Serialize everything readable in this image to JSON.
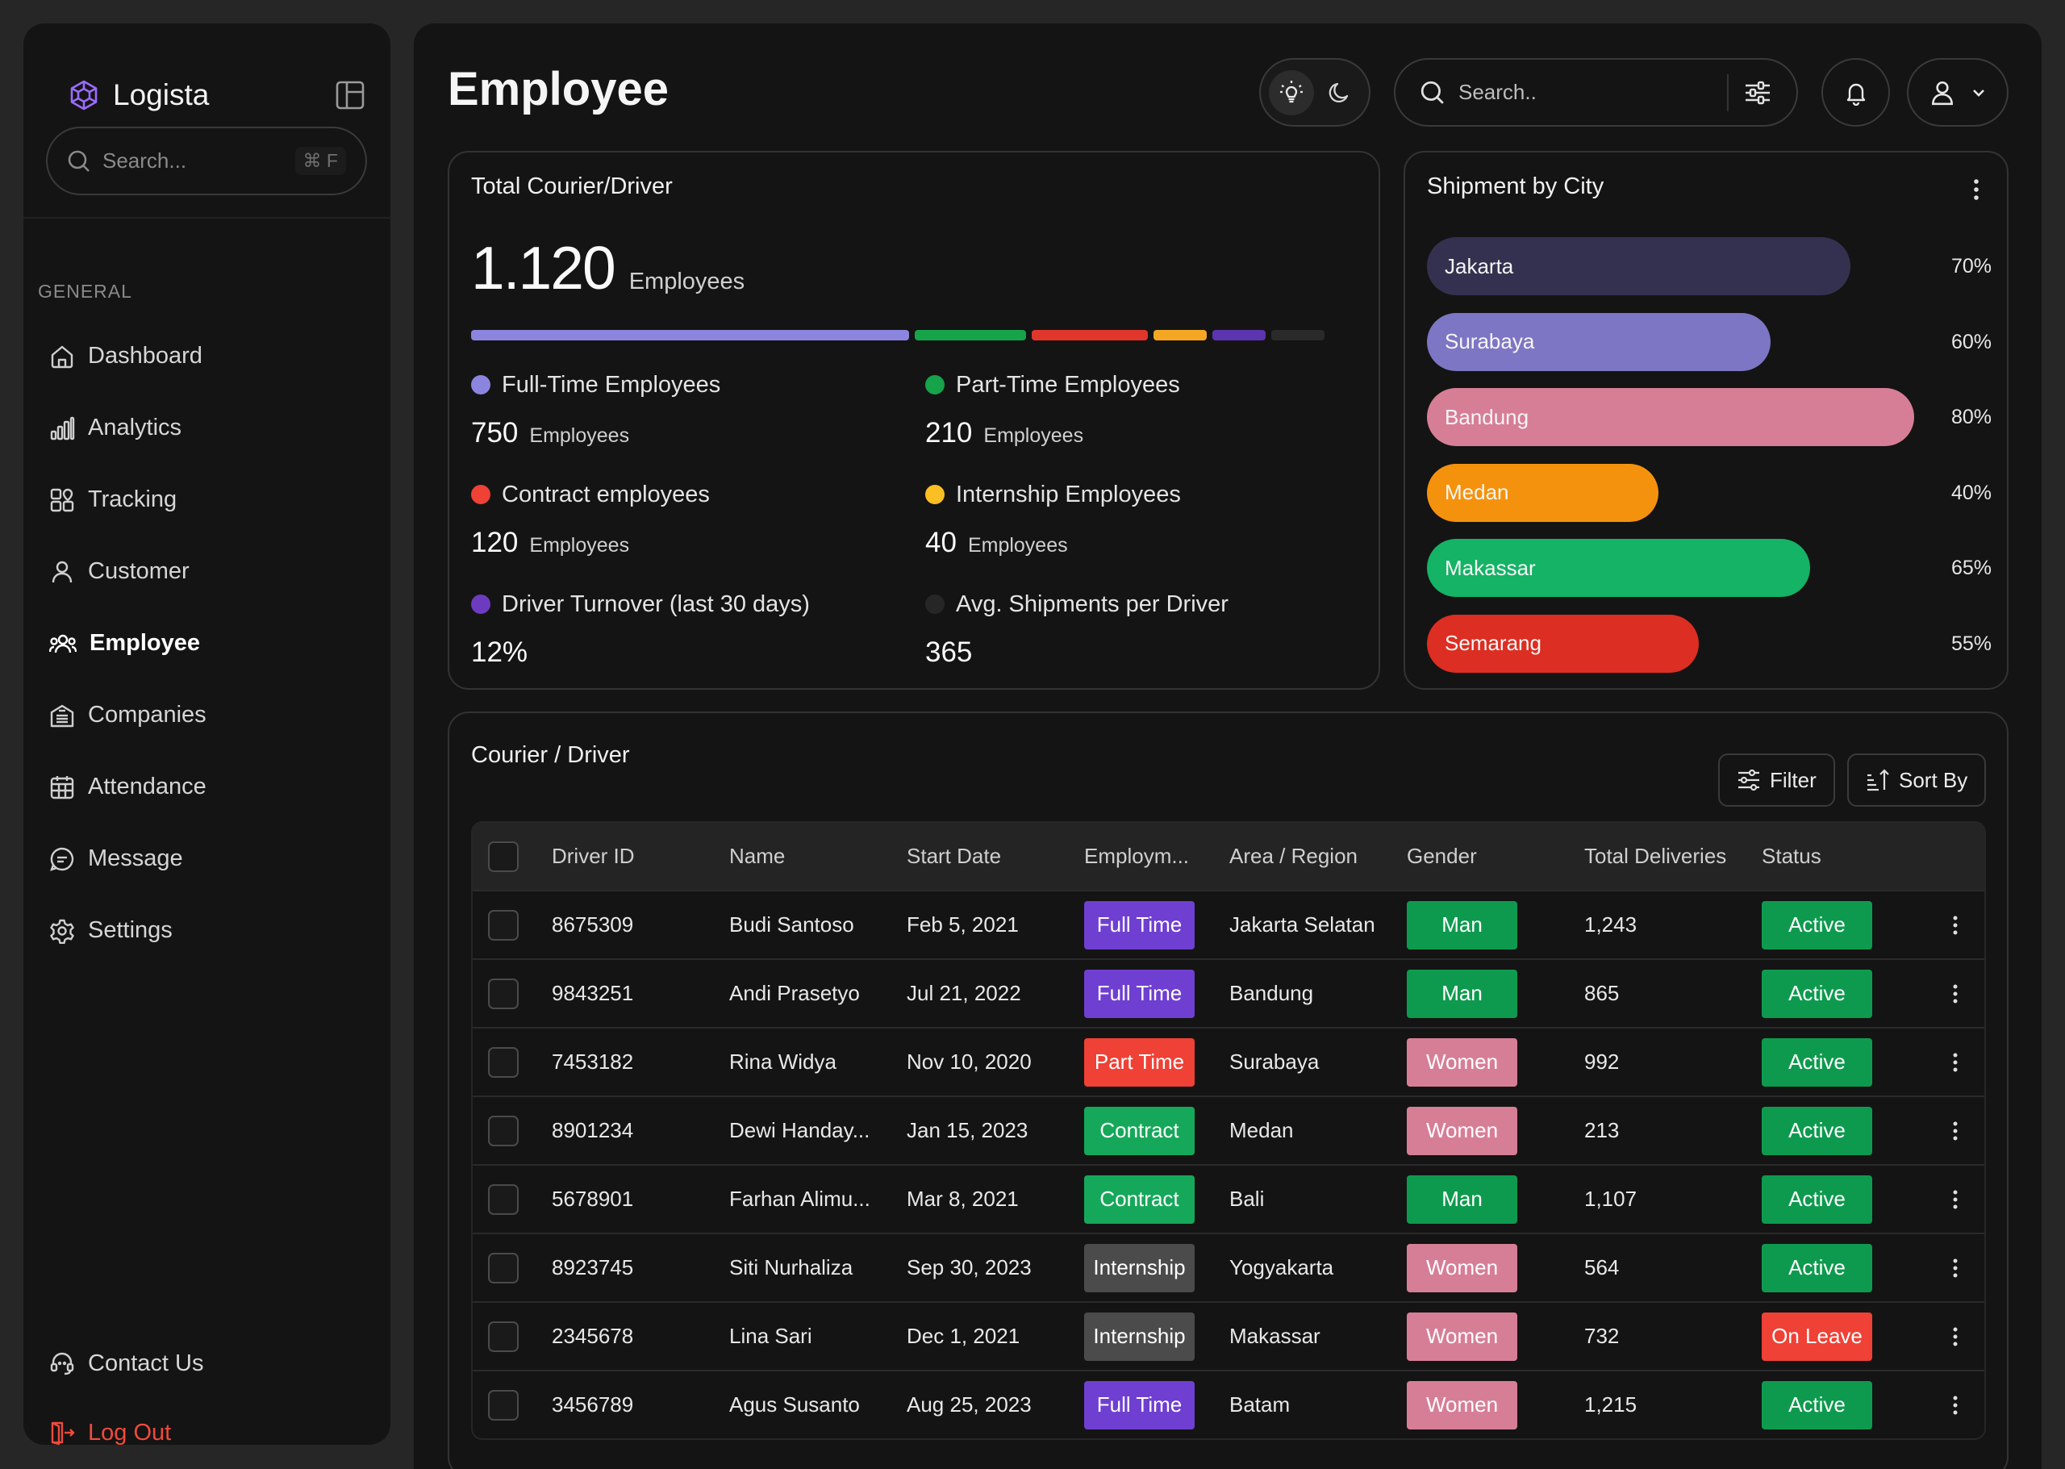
{
  "sidebar": {
    "brand": "Logista",
    "search_placeholder": "Search...",
    "search_shortcut": "⌘ F",
    "section": "GENERAL",
    "items": [
      {
        "label": "Dashboard",
        "icon": "home-icon"
      },
      {
        "label": "Analytics",
        "icon": "bar-chart-icon"
      },
      {
        "label": "Tracking",
        "icon": "tracking-icon"
      },
      {
        "label": "Customer",
        "icon": "user-icon"
      },
      {
        "label": "Employee",
        "icon": "users-icon",
        "active": true
      },
      {
        "label": "Companies",
        "icon": "building-icon"
      },
      {
        "label": "Attendance",
        "icon": "calendar-icon"
      },
      {
        "label": "Message",
        "icon": "message-icon"
      },
      {
        "label": "Settings",
        "icon": "gear-icon"
      }
    ],
    "bottom": {
      "contact": "Contact Us",
      "logout": "Log Out"
    }
  },
  "header": {
    "title": "Employee",
    "search_placeholder": "Search.."
  },
  "total_card": {
    "title": "Total Courier/Driver",
    "total": "1.120",
    "total_unit": "Employees",
    "segments": [
      {
        "color": "#8b85e0",
        "share": 0.51
      },
      {
        "color": "#16a34a",
        "share": 0.13
      },
      {
        "color": "#e0362c",
        "share": 0.135
      },
      {
        "color": "#f5a623",
        "share": 0.062
      },
      {
        "color": "#5b35b0",
        "share": 0.062
      },
      {
        "color": "#2a2a2a",
        "share": 0.062
      }
    ],
    "stats": [
      {
        "label": "Full-Time Employees",
        "value": "750",
        "unit": "Employees",
        "color": "#8b85e0"
      },
      {
        "label": "Part-Time Employees",
        "value": "210",
        "unit": "Employees",
        "color": "#16a34a"
      },
      {
        "label": "Contract employees",
        "value": "120",
        "unit": "Employees",
        "color": "#ef4136"
      },
      {
        "label": "Internship Employees",
        "value": "40",
        "unit": "Employees",
        "color": "#fbbf24"
      },
      {
        "label": "Driver Turnover (last 30 days)",
        "value": "12%",
        "unit": "",
        "color": "#6d3bbf"
      },
      {
        "label": "Avg. Shipments per Driver",
        "value": "365",
        "unit": "",
        "color": "#262626"
      }
    ]
  },
  "city_card": {
    "title": "Shipment by City",
    "cities": [
      {
        "name": "Jakarta",
        "pct_label": "70%",
        "fill": 0.53,
        "color": "#343150"
      },
      {
        "name": "Surabaya",
        "pct_label": "60%",
        "fill": 0.43,
        "color": "#7d76c4"
      },
      {
        "name": "Bandung",
        "pct_label": "80%",
        "fill": 0.61,
        "color": "#d77e97"
      },
      {
        "name": "Medan",
        "pct_label": "40%",
        "fill": 0.29,
        "color": "#f5920d"
      },
      {
        "name": "Makassar",
        "pct_label": "65%",
        "fill": 0.48,
        "color": "#14b365"
      },
      {
        "name": "Semarang",
        "pct_label": "55%",
        "fill": 0.34,
        "color": "#dc2e22"
      }
    ]
  },
  "table_card": {
    "title": "Courier / Driver",
    "filter": "Filter",
    "sort": "Sort By",
    "columns": [
      "Driver ID",
      "Name",
      "Start Date",
      "Employm...",
      "Area / Region",
      "Gender",
      "Total Deliveries",
      "Status"
    ],
    "rows": [
      {
        "id": "8675309",
        "name": "Budi Santoso",
        "date": "Feb 5, 2021",
        "type": "Full Time",
        "area": "Jakarta Selatan",
        "gender": "Man",
        "total": "1,243",
        "status": "Active"
      },
      {
        "id": "9843251",
        "name": "Andi Prasetyo",
        "date": "Jul 21, 2022",
        "type": "Full Time",
        "area": "Bandung",
        "gender": "Man",
        "total": "865",
        "status": "Active"
      },
      {
        "id": "7453182",
        "name": "Rina Widya",
        "date": "Nov 10, 2020",
        "type": "Part Time",
        "area": "Surabaya",
        "gender": "Women",
        "total": "992",
        "status": "Active"
      },
      {
        "id": "8901234",
        "name": "Dewi Handay...",
        "date": "Jan 15, 2023",
        "type": "Contract",
        "area": "Medan",
        "gender": "Women",
        "total": "213",
        "status": "Active"
      },
      {
        "id": "5678901",
        "name": "Farhan Alimu...",
        "date": "Mar 8, 2021",
        "type": "Contract",
        "area": "Bali",
        "gender": "Man",
        "total": "1,107",
        "status": "Active"
      },
      {
        "id": "8923745",
        "name": "Siti Nurhaliza",
        "date": "Sep 30, 2023",
        "type": "Internship",
        "area": "Yogyakarta",
        "gender": "Women",
        "total": "564",
        "status": "Active"
      },
      {
        "id": "2345678",
        "name": "Lina Sari",
        "date": "Dec 1, 2021",
        "type": "Internship",
        "area": "Makassar",
        "gender": "Women",
        "total": "732",
        "status": "On Leave"
      },
      {
        "id": "3456789",
        "name": "Agus Susanto",
        "date": "Aug 25, 2023",
        "type": "Full Time",
        "area": "Batam",
        "gender": "Women",
        "total": "1,215",
        "status": "Active"
      }
    ],
    "colors": {
      "Full Time": "#6f3fd1",
      "Part Time": "#ef4136",
      "Contract": "#16a85a",
      "Internship": "#4b4b4b",
      "Man": "#0e9a4e",
      "Women": "#d77e97",
      "Active": "#0e9a4e",
      "On Leave": "#ef4136"
    }
  }
}
